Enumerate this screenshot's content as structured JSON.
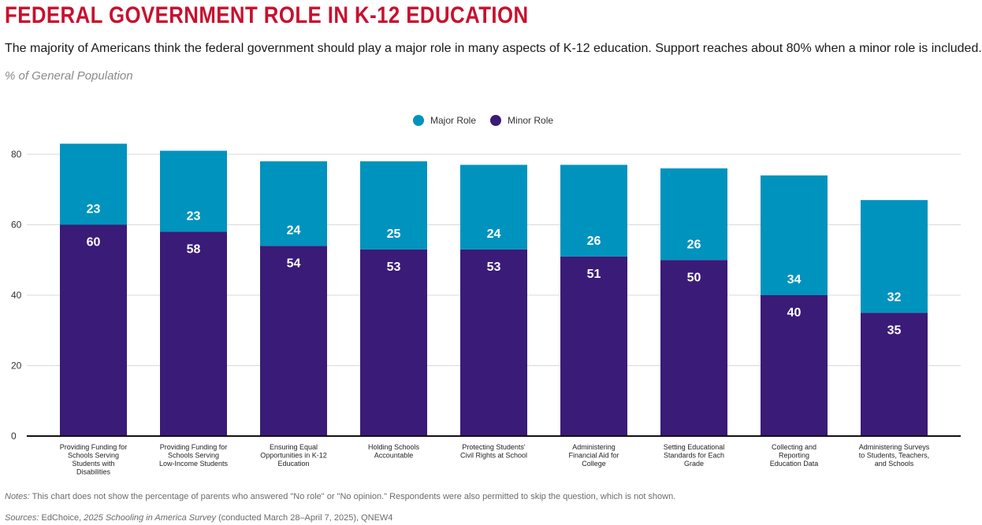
{
  "header": {
    "title": "FEDERAL GOVERNMENT ROLE IN K-12 EDUCATION",
    "subtitle": "The majority of Americans think the federal government should play a major role in many aspects of K-12 education. Support reaches about 80% when a minor role is included.",
    "unit_label": "% of General Population"
  },
  "footer": {
    "notes_label": "Notes:",
    "notes_text": " This chart does not show the percentage of parents who answered \"No role\" or \"No opinion.\" Respondents were also permitted to skip the question, which is not shown.",
    "sources_label": "Sources:",
    "sources_pre": " EdChoice, ",
    "sources_italic": "2025 Schooling in America Survey",
    "sources_post": " (conducted March 28–April 7, 2025), QNEW4"
  },
  "colors": {
    "major": "#0093bd",
    "minor": "#3a1b78",
    "title": "#c8102e"
  },
  "chart_data": {
    "type": "bar",
    "stacked": true,
    "ylim": [
      0,
      80
    ],
    "yticks": [
      0,
      20,
      40,
      60,
      80
    ],
    "grid": true,
    "legend_position": "top-center",
    "categories": [
      [
        "Providing Funding for",
        "Schools Serving",
        "Students with",
        "Disabilities"
      ],
      [
        "Providing Funding for",
        "Schools Serving",
        "Low-Income Students"
      ],
      [
        "Ensuring Equal",
        "Opportunities in K-12",
        "Education"
      ],
      [
        "Holding Schools",
        "Accountable"
      ],
      [
        "Protecting Students'",
        "Civil Rights at School"
      ],
      [
        "Administering",
        "Financial Aid for",
        "College"
      ],
      [
        "Setting Educational",
        "Standards for Each",
        "Grade"
      ],
      [
        "Collecting and",
        "Reporting",
        "Education Data"
      ],
      [
        "Administering Surveys",
        "to Students, Teachers,",
        "and Schools"
      ]
    ],
    "series": [
      {
        "name": "Minor Role",
        "values": [
          60,
          58,
          54,
          53,
          53,
          51,
          50,
          40,
          35
        ]
      },
      {
        "name": "Major Role",
        "values": [
          23,
          23,
          24,
          25,
          24,
          26,
          26,
          34,
          32
        ]
      }
    ]
  }
}
